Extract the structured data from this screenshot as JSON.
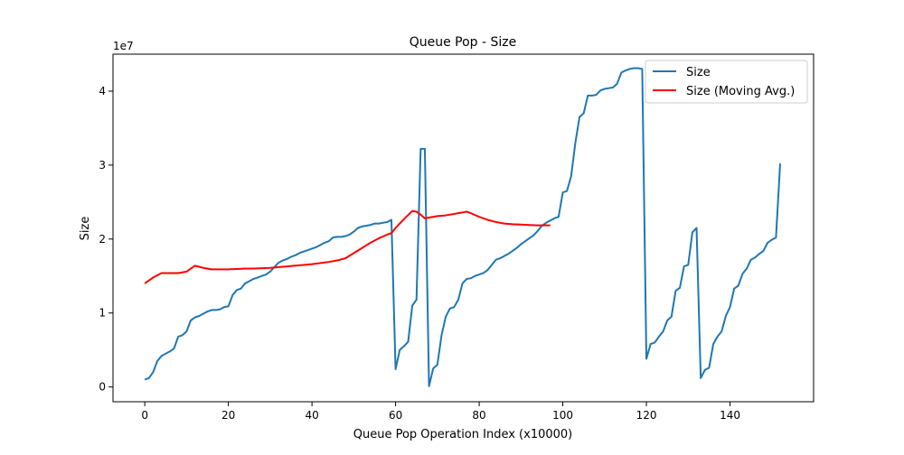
{
  "chart_data": {
    "type": "line",
    "title": "Queue Pop - Size",
    "xlabel": "Queue Pop Operation Index (x10000)",
    "ylabel": "Size",
    "y_offset_label": "1e7",
    "xlim": [
      -7.6,
      160
    ],
    "ylim": [
      -2000000,
      45000000
    ],
    "x_ticks": [
      0,
      20,
      40,
      60,
      80,
      100,
      120,
      140
    ],
    "y_ticks": [
      0,
      10000000,
      20000000,
      30000000,
      40000000
    ],
    "y_tick_labels": [
      "0",
      "1",
      "2",
      "3",
      "4"
    ],
    "legend_position": "top-right",
    "grid": false,
    "series": [
      {
        "name": "Size",
        "color": "#1f77b4",
        "x": [
          0,
          1,
          2,
          3,
          4,
          5,
          6,
          7,
          8,
          9,
          10,
          11,
          12,
          13,
          14,
          15,
          16,
          17,
          18,
          19,
          20,
          21,
          22,
          23,
          24,
          25,
          26,
          27,
          28,
          29,
          30,
          31,
          32,
          33,
          34,
          35,
          36,
          37,
          38,
          39,
          40,
          41,
          42,
          43,
          44,
          45,
          46,
          47,
          48,
          49,
          50,
          51,
          52,
          53,
          54,
          55,
          56,
          57,
          58,
          59,
          60,
          61,
          62,
          63,
          64,
          65,
          66,
          67,
          68,
          69,
          70,
          71,
          72,
          73,
          74,
          75,
          76,
          77,
          78,
          79,
          80,
          81,
          82,
          83,
          84,
          85,
          86,
          87,
          88,
          89,
          90,
          91,
          92,
          93,
          94,
          95,
          96,
          97,
          98,
          99,
          100,
          101,
          102,
          103,
          104,
          105,
          106,
          107,
          108,
          109,
          110,
          111,
          112,
          113,
          114,
          115,
          116,
          117,
          118,
          119,
          120,
          121,
          122,
          123,
          124,
          125,
          126,
          127,
          128,
          129,
          130,
          131,
          132,
          133,
          134,
          135,
          136,
          137,
          138,
          139,
          140,
          141,
          142,
          143,
          144,
          145,
          146,
          147,
          148,
          149,
          150,
          151,
          152
        ],
        "values": [
          1000000,
          1200000,
          2000000,
          3500000,
          4200000,
          4500000,
          4800000,
          5200000,
          6800000,
          7000000,
          7500000,
          9000000,
          9400000,
          9600000,
          9900000,
          10200000,
          10400000,
          10400000,
          10500000,
          10800000,
          10900000,
          12400000,
          13100000,
          13300000,
          14000000,
          14300000,
          14600000,
          14800000,
          15000000,
          15200000,
          15600000,
          16200000,
          16800000,
          17100000,
          17300000,
          17600000,
          17800000,
          18100000,
          18300000,
          18500000,
          18700000,
          18900000,
          19200000,
          19500000,
          19700000,
          20200000,
          20300000,
          20300000,
          20400000,
          20600000,
          21000000,
          21500000,
          21700000,
          21800000,
          21900000,
          22100000,
          22100000,
          22200000,
          22300000,
          22600000,
          2400000,
          5000000,
          5500000,
          6100000,
          11000000,
          11800000,
          32200000,
          32200000,
          100000,
          2500000,
          3000000,
          7000000,
          9500000,
          10600000,
          10800000,
          11800000,
          14000000,
          14600000,
          14700000,
          15000000,
          15200000,
          15400000,
          15800000,
          16500000,
          17200000,
          17400000,
          17700000,
          18000000,
          18400000,
          18800000,
          19300000,
          19700000,
          20100000,
          20500000,
          21100000,
          21800000,
          22200000,
          22500000,
          22800000,
          23000000,
          26300000,
          26500000,
          28500000,
          33000000,
          36500000,
          37000000,
          39400000,
          39400000,
          39500000,
          40100000,
          40300000,
          40400000,
          40500000,
          41000000,
          42500000,
          42800000,
          43000000,
          43100000,
          43100000,
          43000000,
          3800000,
          5800000,
          6000000,
          6800000,
          7500000,
          9000000,
          9500000,
          13000000,
          13400000,
          16300000,
          16500000,
          20900000,
          21500000,
          1200000,
          2300000,
          2600000,
          5800000,
          6800000,
          7500000,
          9600000,
          10800000,
          13300000,
          13700000,
          15300000,
          16000000,
          17200000,
          17500000,
          18000000,
          18400000,
          19500000,
          19900000,
          20200000,
          30200000
        ]
      },
      {
        "name": "Size (Moving Avg.)",
        "color": "#ff0000",
        "x": [
          0,
          2,
          4,
          6,
          8,
          10,
          12,
          14,
          16,
          18,
          20,
          22,
          24,
          26,
          28,
          30,
          32,
          34,
          36,
          38,
          40,
          42,
          44,
          46,
          48,
          50,
          52,
          54,
          56,
          58,
          59,
          60,
          62,
          64,
          65,
          66,
          67,
          68,
          70,
          72,
          74,
          76,
          77,
          78,
          80,
          82,
          84,
          86,
          88,
          90,
          92,
          94,
          96,
          97
        ],
        "values": [
          14000000,
          14800000,
          15400000,
          15400000,
          15400000,
          15600000,
          16400000,
          16100000,
          15900000,
          15900000,
          15900000,
          15950000,
          16000000,
          16000000,
          16050000,
          16100000,
          16200000,
          16300000,
          16400000,
          16500000,
          16600000,
          16750000,
          16900000,
          17100000,
          17400000,
          18100000,
          18800000,
          19500000,
          20100000,
          20600000,
          20800000,
          21500000,
          22700000,
          23800000,
          23700000,
          23300000,
          22800000,
          22900000,
          23100000,
          23200000,
          23400000,
          23600000,
          23700000,
          23500000,
          23000000,
          22600000,
          22300000,
          22100000,
          22000000,
          21950000,
          21900000,
          21850000,
          21850000,
          21850000
        ]
      }
    ]
  }
}
